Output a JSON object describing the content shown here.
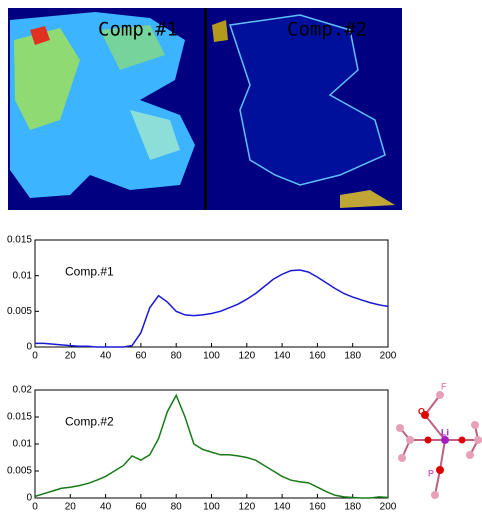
{
  "image_panels": [
    {
      "label": "Comp.#1"
    },
    {
      "label": "Comp.#2"
    }
  ],
  "chart_data": [
    {
      "type": "line",
      "label": "Comp.#1",
      "x": [
        0,
        5,
        10,
        15,
        20,
        25,
        30,
        35,
        40,
        45,
        50,
        55,
        60,
        65,
        70,
        75,
        80,
        85,
        90,
        95,
        100,
        105,
        110,
        115,
        120,
        125,
        130,
        135,
        140,
        145,
        150,
        155,
        160,
        165,
        170,
        175,
        180,
        185,
        190,
        195,
        200
      ],
      "series": [
        {
          "color": "#1a1ad6",
          "values": [
            0.0005,
            0.0005,
            0.0004,
            0.0003,
            0.0002,
            0.0001,
            0.0001,
            0,
            0,
            0,
            0,
            0.0002,
            0.002,
            0.0055,
            0.0072,
            0.0063,
            0.005,
            0.0045,
            0.0044,
            0.0045,
            0.0047,
            0.005,
            0.0055,
            0.006,
            0.0067,
            0.0075,
            0.0085,
            0.0095,
            0.0102,
            0.0107,
            0.0108,
            0.0105,
            0.0098,
            0.009,
            0.0082,
            0.0075,
            0.007,
            0.0066,
            0.0062,
            0.0059,
            0.0057
          ]
        }
      ],
      "xlim": [
        0,
        200
      ],
      "xticks": [
        0,
        20,
        40,
        60,
        80,
        100,
        120,
        140,
        160,
        180,
        200
      ],
      "ylim": [
        0,
        0.015
      ],
      "yticks": [
        0,
        0.005,
        0.01,
        0.015
      ]
    },
    {
      "type": "line",
      "label": "Comp.#2",
      "x": [
        0,
        5,
        10,
        15,
        20,
        25,
        30,
        35,
        40,
        45,
        50,
        55,
        60,
        65,
        70,
        75,
        80,
        85,
        90,
        95,
        100,
        105,
        110,
        115,
        120,
        125,
        130,
        135,
        140,
        145,
        150,
        155,
        160,
        165,
        170,
        175,
        180,
        185,
        190,
        195,
        200
      ],
      "series": [
        {
          "color": "#1a7a1a",
          "values": [
            0.0003,
            0.0008,
            0.0013,
            0.0018,
            0.002,
            0.0023,
            0.0027,
            0.0033,
            0.004,
            0.005,
            0.006,
            0.0078,
            0.007,
            0.008,
            0.011,
            0.016,
            0.019,
            0.015,
            0.01,
            0.009,
            0.0085,
            0.008,
            0.008,
            0.0078,
            0.0075,
            0.007,
            0.006,
            0.005,
            0.004,
            0.0033,
            0.003,
            0.0028,
            0.002,
            0.0012,
            0.0005,
            0.0002,
            0.0001,
            0,
            0,
            0.0002,
            0.0001
          ]
        }
      ],
      "xlim": [
        0,
        200
      ],
      "xticks": [
        0,
        20,
        40,
        60,
        80,
        100,
        120,
        140,
        160,
        180,
        200
      ],
      "ylim": [
        0,
        0.02
      ],
      "yticks": [
        0,
        0.005,
        0.01,
        0.015,
        0.02
      ]
    }
  ],
  "molecule": {
    "labels": [
      "F",
      "O",
      "Li",
      "P"
    ]
  }
}
